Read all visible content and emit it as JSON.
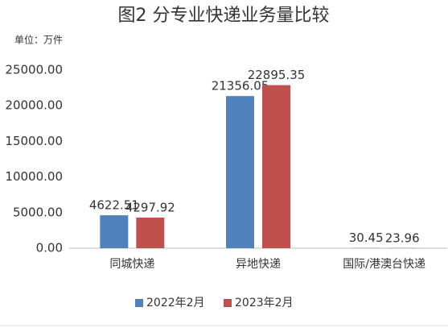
{
  "chart_data": {
    "type": "bar",
    "title": "图2  分专业快递业务量比较",
    "subtitle": "单位：万件",
    "categories": [
      "同城快递",
      "异地快递",
      "国际/港澳台快递"
    ],
    "series": [
      {
        "name": "2022年2月",
        "color": "#4f81bd",
        "values": [
          4622.51,
          21356.05,
          30.45
        ]
      },
      {
        "name": "2023年2月",
        "color": "#c0504d",
        "values": [
          4297.92,
          22895.35,
          23.96
        ]
      }
    ],
    "ylim": [
      0,
      25000
    ],
    "yticks": [
      {
        "value": 0,
        "label": "0.00"
      },
      {
        "value": 5000,
        "label": "5000.00"
      },
      {
        "value": 10000,
        "label": "10000.00"
      },
      {
        "value": 15000,
        "label": "15000.00"
      },
      {
        "value": 20000,
        "label": "20000.00"
      },
      {
        "value": 25000,
        "label": "25000.00"
      }
    ],
    "grid": false,
    "legend": "bottom"
  }
}
